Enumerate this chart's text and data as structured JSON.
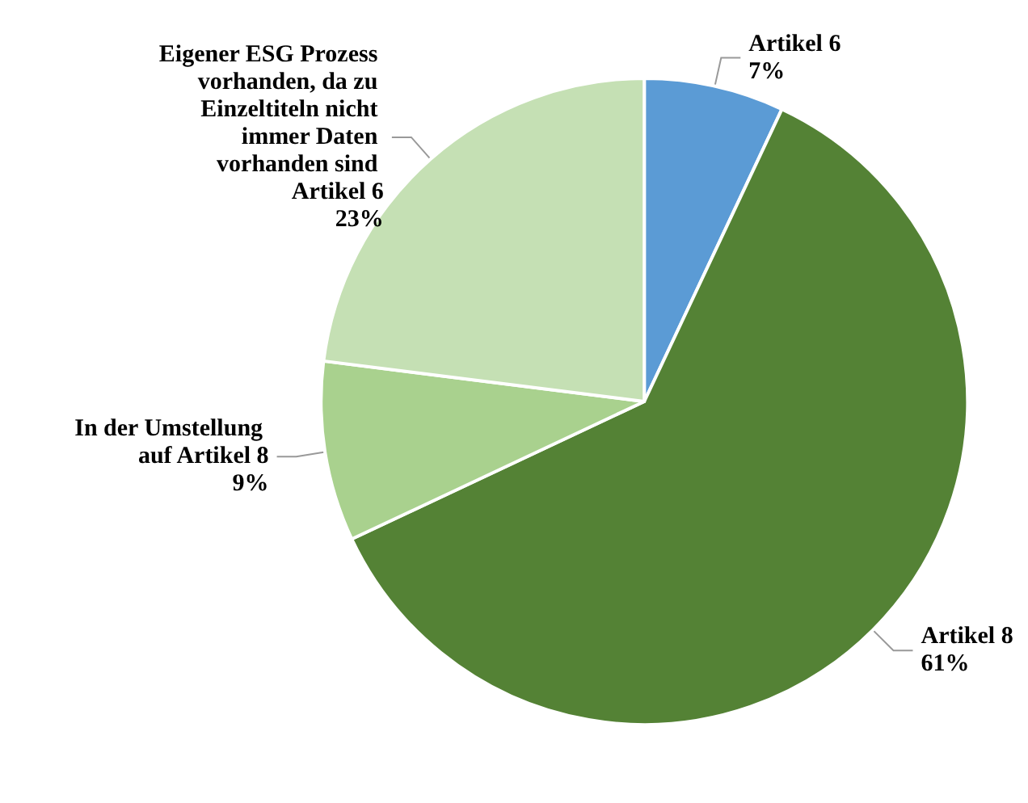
{
  "chart_data": {
    "type": "pie",
    "categories": [
      "Artikel 6",
      "Artikel 8",
      "In der Umstellung auf Artikel 8",
      "Eigener ESG Prozess vorhanden, da zu Einzeltiteln nicht immer Daten vorhanden sind Artikel 6"
    ],
    "values": [
      7,
      61,
      9,
      23
    ],
    "value_labels": [
      "7%",
      "61%",
      "9%",
      "23%"
    ],
    "colors": [
      "#5b9bd5",
      "#548235",
      "#a9d18e",
      "#c5e0b4"
    ],
    "legend": false
  }
}
